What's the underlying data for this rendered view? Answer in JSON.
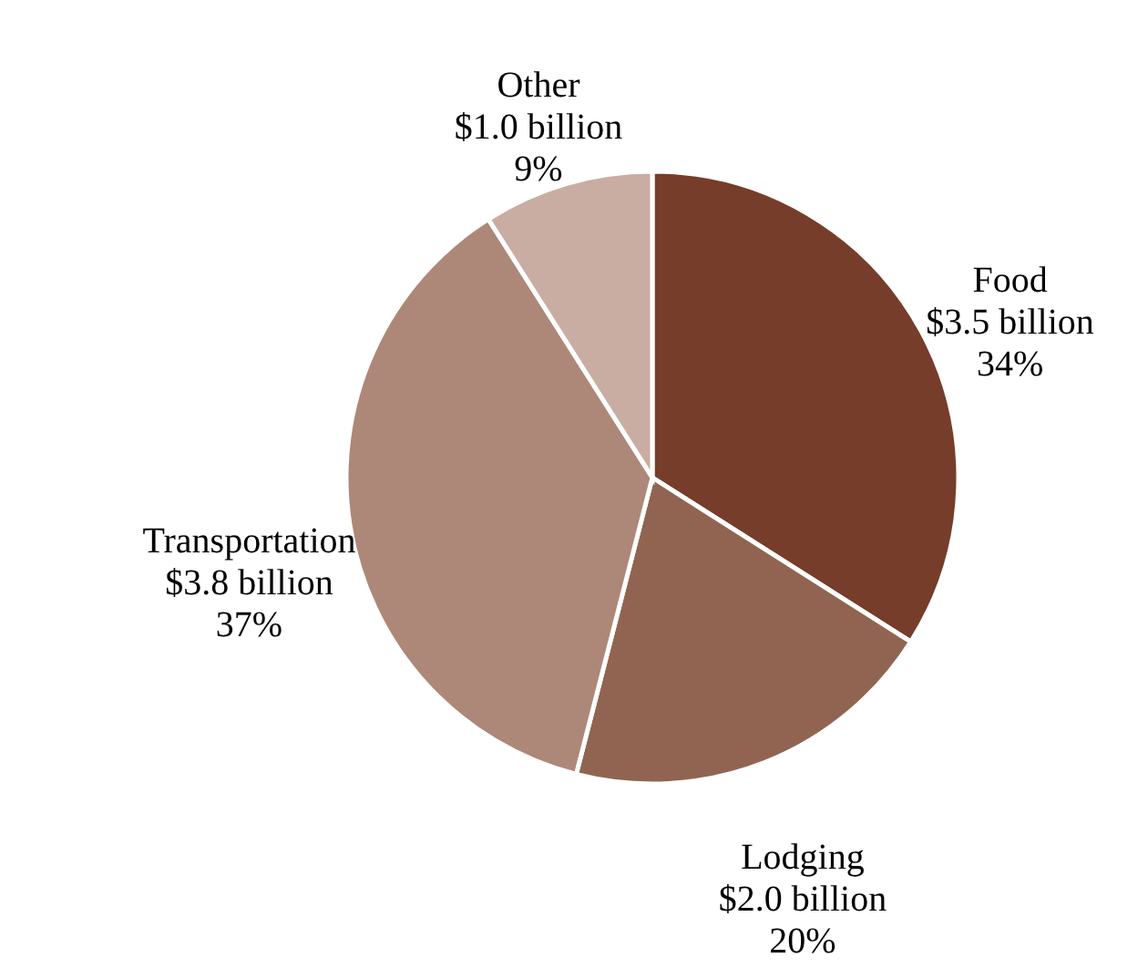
{
  "chart_data": {
    "type": "pie",
    "categories": [
      "Food",
      "Lodging",
      "Transportation",
      "Other"
    ],
    "values": [
      34,
      20,
      37,
      9
    ],
    "value_labels": [
      "34%",
      "20%",
      "37%",
      "9%"
    ],
    "annotations": [
      "$3.5 billion",
      "$2.0 billion",
      "$3.8 billion",
      "$1.0 billion"
    ],
    "colors": [
      "#763d2a",
      "#916452",
      "#ad8878",
      "#c9ada2"
    ]
  }
}
